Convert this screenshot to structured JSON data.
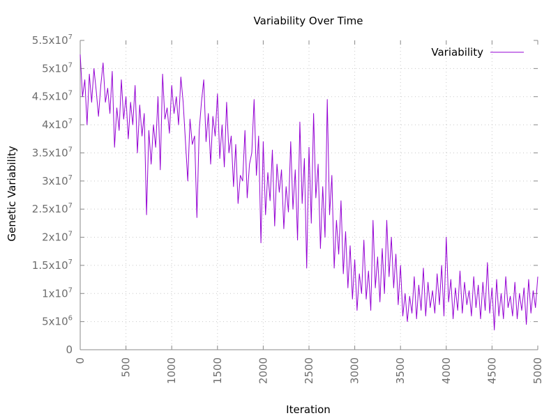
{
  "chart_data": {
    "type": "line",
    "title": "Variability Over Time",
    "xlabel": "Iteration",
    "ylabel": "Genetic Variability",
    "xlim": [
      0,
      5000
    ],
    "ylim": [
      0,
      55000000
    ],
    "x_ticks": [
      "0",
      "500",
      "1000",
      "1500",
      "2000",
      "2500",
      "3000",
      "3500",
      "4000",
      "4500",
      "5000"
    ],
    "y_ticks": [
      {
        "value": 0,
        "base": "0",
        "exp": ""
      },
      {
        "value": 5000000,
        "base": "5x10",
        "exp": "6"
      },
      {
        "value": 10000000,
        "base": "1x10",
        "exp": "7"
      },
      {
        "value": 15000000,
        "base": "1.5x10",
        "exp": "7"
      },
      {
        "value": 20000000,
        "base": "2x10",
        "exp": "7"
      },
      {
        "value": 25000000,
        "base": "2.5x10",
        "exp": "7"
      },
      {
        "value": 30000000,
        "base": "3x10",
        "exp": "7"
      },
      {
        "value": 35000000,
        "base": "3.5x10",
        "exp": "7"
      },
      {
        "value": 40000000,
        "base": "4x10",
        "exp": "7"
      },
      {
        "value": 45000000,
        "base": "4.5x10",
        "exp": "7"
      },
      {
        "value": 50000000,
        "base": "5x10",
        "exp": "7"
      },
      {
        "value": 55000000,
        "base": "5.5x10",
        "exp": "7"
      }
    ],
    "grid": true,
    "legend_position": "top-right",
    "series": [
      {
        "name": "Variability",
        "color": "#9400d3",
        "x": [
          0,
          25,
          50,
          75,
          100,
          125,
          150,
          175,
          200,
          225,
          250,
          275,
          300,
          325,
          350,
          375,
          400,
          425,
          450,
          475,
          500,
          525,
          550,
          575,
          600,
          625,
          650,
          675,
          700,
          725,
          750,
          775,
          800,
          825,
          850,
          875,
          900,
          925,
          950,
          975,
          1000,
          1025,
          1050,
          1075,
          1100,
          1125,
          1150,
          1175,
          1200,
          1225,
          1250,
          1275,
          1300,
          1325,
          1350,
          1375,
          1400,
          1425,
          1450,
          1475,
          1500,
          1525,
          1550,
          1575,
          1600,
          1625,
          1650,
          1675,
          1700,
          1725,
          1750,
          1775,
          1800,
          1825,
          1850,
          1875,
          1900,
          1925,
          1950,
          1975,
          2000,
          2025,
          2050,
          2075,
          2100,
          2125,
          2150,
          2175,
          2200,
          2225,
          2250,
          2275,
          2300,
          2325,
          2350,
          2375,
          2400,
          2425,
          2450,
          2475,
          2500,
          2525,
          2550,
          2575,
          2600,
          2625,
          2650,
          2675,
          2700,
          2725,
          2750,
          2775,
          2800,
          2825,
          2850,
          2875,
          2900,
          2925,
          2950,
          2975,
          3000,
          3025,
          3050,
          3075,
          3100,
          3125,
          3150,
          3175,
          3200,
          3225,
          3250,
          3275,
          3300,
          3325,
          3350,
          3375,
          3400,
          3425,
          3450,
          3475,
          3500,
          3525,
          3550,
          3575,
          3600,
          3625,
          3650,
          3675,
          3700,
          3725,
          3750,
          3775,
          3800,
          3825,
          3850,
          3875,
          3900,
          3925,
          3950,
          3975,
          4000,
          4025,
          4050,
          4075,
          4100,
          4125,
          4150,
          4175,
          4200,
          4225,
          4250,
          4275,
          4300,
          4325,
          4350,
          4375,
          4400,
          4425,
          4450,
          4475,
          4500,
          4525,
          4550,
          4575,
          4600,
          4625,
          4650,
          4675,
          4700,
          4725,
          4750,
          4775,
          4800,
          4825,
          4850,
          4875,
          4900,
          4925,
          4950,
          4975,
          5000
        ],
        "values": [
          52500000,
          45000000,
          48000000,
          40000000,
          49000000,
          44000000,
          50000000,
          46000000,
          41500000,
          47000000,
          51000000,
          44000000,
          46500000,
          42000000,
          49500000,
          36000000,
          43000000,
          39000000,
          48000000,
          41000000,
          45000000,
          37500000,
          44000000,
          40000000,
          47000000,
          35000000,
          43500000,
          38000000,
          42000000,
          24000000,
          39000000,
          33000000,
          40000000,
          36000000,
          45000000,
          32000000,
          49000000,
          41000000,
          43000000,
          38500000,
          47000000,
          42000000,
          45000000,
          40000000,
          48500000,
          44000000,
          37000000,
          30000000,
          41000000,
          36500000,
          38000000,
          23500000,
          39000000,
          44000000,
          48000000,
          37000000,
          42000000,
          33000000,
          41500000,
          38000000,
          45500000,
          34000000,
          40000000,
          32500000,
          44000000,
          35000000,
          38000000,
          29000000,
          36500000,
          26000000,
          31000000,
          30000000,
          39000000,
          27000000,
          33000000,
          35000000,
          44500000,
          31000000,
          38000000,
          19000000,
          37000000,
          24000000,
          31500000,
          26500000,
          35500000,
          22000000,
          33000000,
          28000000,
          32000000,
          21500000,
          29000000,
          24500000,
          37000000,
          25000000,
          32000000,
          19500000,
          40500000,
          26000000,
          34000000,
          14500000,
          36000000,
          22500000,
          42000000,
          27000000,
          33000000,
          18000000,
          29000000,
          20000000,
          44500000,
          24000000,
          31000000,
          14500000,
          23000000,
          17000000,
          26500000,
          13500000,
          21000000,
          11000000,
          18500000,
          9000000,
          16000000,
          7000000,
          13500000,
          10000000,
          19500000,
          9000000,
          14000000,
          7000000,
          23000000,
          11000000,
          16500000,
          8500000,
          18000000,
          10000000,
          23000000,
          13000000,
          20000000,
          11000000,
          17000000,
          8000000,
          15000000,
          6000000,
          10000000,
          5000000,
          9500000,
          6500000,
          13000000,
          5500000,
          11500000,
          7000000,
          14500000,
          6000000,
          12000000,
          7500000,
          10500000,
          6500000,
          13500000,
          8000000,
          15000000,
          6000000,
          20000000,
          8500000,
          12500000,
          5500000,
          11000000,
          7000000,
          14000000,
          6500000,
          12000000,
          8000000,
          10500000,
          6000000,
          13000000,
          7500000,
          11500000,
          5500000,
          12000000,
          7000000,
          15500000,
          6500000,
          11000000,
          3500000,
          12500000,
          6000000,
          10000000,
          5500000,
          13000000,
          7500000,
          9500000,
          6000000,
          12000000,
          5500000,
          10000000,
          7000000,
          11000000,
          4500000,
          12500000,
          6500000,
          10500000,
          7500000,
          13000000
        ]
      }
    ]
  }
}
